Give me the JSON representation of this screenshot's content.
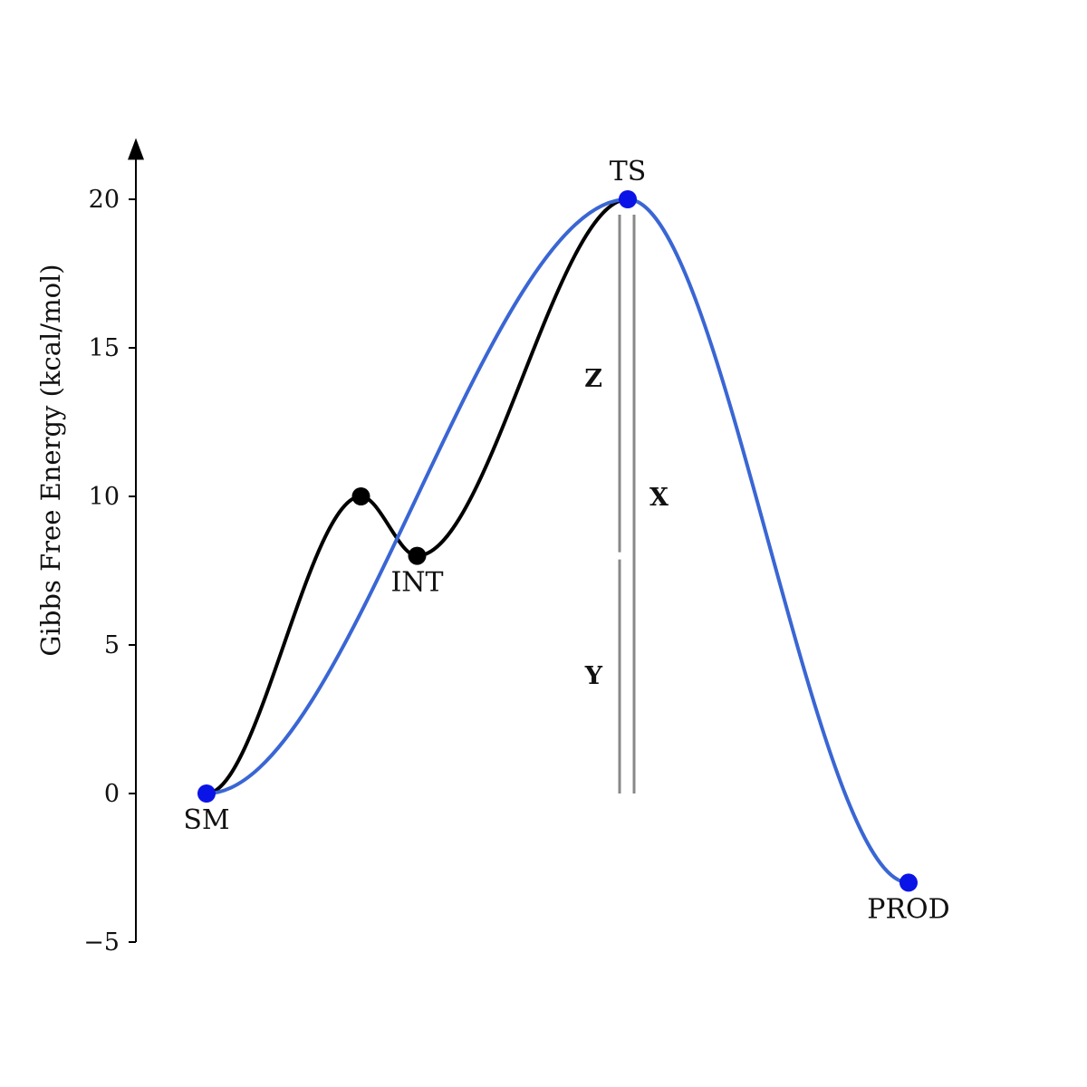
{
  "chart_data": {
    "type": "line",
    "title": "",
    "xlabel": "",
    "ylabel": "Gibbs Free Energy (kcal/mol)",
    "ylim": [
      -5,
      22
    ],
    "x_axis_visible": false,
    "grid": false,
    "legend": "none",
    "y_ticks": [
      {
        "value": -5,
        "label": "−5"
      },
      {
        "value": 0,
        "label": "0"
      },
      {
        "value": 5,
        "label": "5"
      },
      {
        "value": 10,
        "label": "10"
      },
      {
        "value": 15,
        "label": "15"
      },
      {
        "value": 20,
        "label": "20"
      }
    ],
    "series": [
      {
        "color": "#000000",
        "points": [
          {
            "x": 0.0,
            "y": 0
          },
          {
            "x": 2.2,
            "y": 10
          },
          {
            "x": 3.0,
            "y": 8
          },
          {
            "x": 6.0,
            "y": 20
          }
        ]
      },
      {
        "color": "#3a66d4",
        "points": [
          {
            "x": 0.0,
            "y": 0
          },
          {
            "x": 6.0,
            "y": 20
          },
          {
            "x": 10.0,
            "y": -3
          }
        ]
      }
    ],
    "markers": [
      {
        "x": 0.0,
        "y": 0,
        "color": "#0a14e6",
        "label": "SM",
        "label_pos": "below"
      },
      {
        "x": 2.2,
        "y": 10,
        "color": "#000000",
        "label": "",
        "label_pos": "none"
      },
      {
        "x": 3.0,
        "y": 8,
        "color": "#000000",
        "label": "INT",
        "label_pos": "below"
      },
      {
        "x": 6.0,
        "y": 20,
        "color": "#0a14e6",
        "label": "TS",
        "label_pos": "above"
      },
      {
        "x": 10.0,
        "y": -3,
        "color": "#0a14e6",
        "label": "PROD",
        "label_pos": "below"
      }
    ],
    "brackets": [
      {
        "label": "Z",
        "y_from": 8,
        "y_to": 20,
        "x": 5.9,
        "side": "left"
      },
      {
        "label": "Y",
        "y_from": 0,
        "y_to": 8,
        "x": 5.9,
        "side": "left"
      },
      {
        "label": "X",
        "y_from": 0,
        "y_to": 20,
        "x": 6.1,
        "side": "right"
      }
    ],
    "bracket_color": "#888888"
  }
}
